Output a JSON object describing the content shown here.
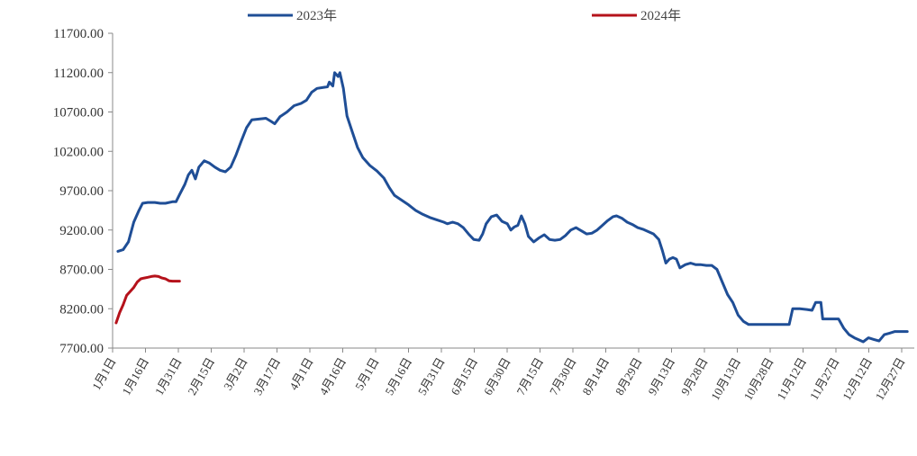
{
  "chart_data": {
    "type": "line",
    "title": "",
    "xlabel": "",
    "ylabel": "",
    "ylim": [
      7700,
      11700
    ],
    "y_ticks": [
      "7700.00",
      "8200.00",
      "8700.00",
      "9200.00",
      "9700.00",
      "10200.00",
      "10700.00",
      "11200.00",
      "11700.00"
    ],
    "x_ticks": [
      "1月1日",
      "1月16日",
      "1月31日",
      "2月15日",
      "3月2日",
      "3月17日",
      "4月1日",
      "4月16日",
      "5月1日",
      "5月16日",
      "5月31日",
      "6月15日",
      "6月30日",
      "7月15日",
      "7月30日",
      "8月14日",
      "8月29日",
      "9月13日",
      "9月28日",
      "10月13日",
      "10月28日",
      "11月12日",
      "11月27日",
      "12月12日",
      "12月27日"
    ],
    "grid": false,
    "legend": "top",
    "series": [
      {
        "name": "2023年",
        "color": "#1f4e96",
        "points": [
          [
            3,
            8930
          ],
          [
            6,
            8950
          ],
          [
            9,
            9050
          ],
          [
            12,
            9300
          ],
          [
            15,
            9450
          ],
          [
            17,
            9540
          ],
          [
            20,
            9550
          ],
          [
            24,
            9550
          ],
          [
            27,
            9540
          ],
          [
            30,
            9540
          ],
          [
            34,
            9560
          ],
          [
            36,
            9560
          ],
          [
            38,
            9650
          ],
          [
            41,
            9780
          ],
          [
            43,
            9900
          ],
          [
            45,
            9960
          ],
          [
            47,
            9850
          ],
          [
            49,
            10000
          ],
          [
            52,
            10080
          ],
          [
            55,
            10050
          ],
          [
            58,
            10000
          ],
          [
            61,
            9960
          ],
          [
            64,
            9940
          ],
          [
            67,
            10000
          ],
          [
            70,
            10150
          ],
          [
            73,
            10330
          ],
          [
            76,
            10500
          ],
          [
            79,
            10600
          ],
          [
            83,
            10610
          ],
          [
            87,
            10620
          ],
          [
            90,
            10580
          ],
          [
            92,
            10550
          ],
          [
            95,
            10640
          ],
          [
            99,
            10700
          ],
          [
            103,
            10780
          ],
          [
            107,
            10810
          ],
          [
            110,
            10850
          ],
          [
            113,
            10950
          ],
          [
            116,
            11000
          ],
          [
            119,
            11010
          ],
          [
            122,
            11020
          ],
          [
            123,
            11080
          ],
          [
            125,
            11030
          ],
          [
            126,
            11200
          ],
          [
            128,
            11150
          ],
          [
            129,
            11200
          ],
          [
            131,
            11000
          ],
          [
            133,
            10650
          ],
          [
            136,
            10450
          ],
          [
            139,
            10250
          ],
          [
            142,
            10120
          ],
          [
            146,
            10020
          ],
          [
            150,
            9950
          ],
          [
            154,
            9860
          ],
          [
            157,
            9740
          ],
          [
            160,
            9640
          ],
          [
            164,
            9580
          ],
          [
            168,
            9520
          ],
          [
            172,
            9450
          ],
          [
            176,
            9400
          ],
          [
            180,
            9360
          ],
          [
            184,
            9330
          ],
          [
            188,
            9300
          ],
          [
            190,
            9280
          ],
          [
            193,
            9300
          ],
          [
            196,
            9280
          ],
          [
            199,
            9230
          ],
          [
            202,
            9150
          ],
          [
            205,
            9080
          ],
          [
            208,
            9070
          ],
          [
            210,
            9150
          ],
          [
            212,
            9280
          ],
          [
            215,
            9370
          ],
          [
            218,
            9390
          ],
          [
            221,
            9310
          ],
          [
            224,
            9280
          ],
          [
            226,
            9200
          ],
          [
            228,
            9240
          ],
          [
            230,
            9260
          ],
          [
            232,
            9380
          ],
          [
            234,
            9280
          ],
          [
            236,
            9120
          ],
          [
            239,
            9050
          ],
          [
            242,
            9100
          ],
          [
            245,
            9140
          ],
          [
            248,
            9080
          ],
          [
            251,
            9070
          ],
          [
            254,
            9080
          ],
          [
            257,
            9130
          ],
          [
            260,
            9200
          ],
          [
            263,
            9230
          ],
          [
            266,
            9190
          ],
          [
            269,
            9150
          ],
          [
            272,
            9160
          ],
          [
            275,
            9200
          ],
          [
            278,
            9260
          ],
          [
            281,
            9320
          ],
          [
            284,
            9370
          ],
          [
            286,
            9380
          ],
          [
            289,
            9350
          ],
          [
            292,
            9300
          ],
          [
            295,
            9270
          ],
          [
            298,
            9230
          ],
          [
            301,
            9210
          ],
          [
            304,
            9180
          ],
          [
            307,
            9150
          ],
          [
            310,
            9080
          ],
          [
            312,
            8940
          ],
          [
            314,
            8780
          ],
          [
            316,
            8830
          ],
          [
            318,
            8850
          ],
          [
            320,
            8830
          ],
          [
            322,
            8720
          ],
          [
            325,
            8760
          ],
          [
            328,
            8780
          ],
          [
            331,
            8760
          ],
          [
            334,
            8760
          ],
          [
            337,
            8750
          ],
          [
            340,
            8750
          ],
          [
            343,
            8700
          ],
          [
            346,
            8540
          ],
          [
            349,
            8380
          ],
          [
            352,
            8280
          ],
          [
            355,
            8120
          ],
          [
            358,
            8040
          ],
          [
            361,
            8000
          ],
          [
            366,
            8000
          ],
          [
            371,
            8000
          ],
          [
            376,
            8000
          ],
          [
            381,
            8000
          ],
          [
            384,
            8000
          ],
          [
            386,
            8200
          ],
          [
            390,
            8200
          ],
          [
            394,
            8190
          ],
          [
            397,
            8180
          ],
          [
            399,
            8280
          ],
          [
            402,
            8280
          ],
          [
            403,
            8070
          ],
          [
            406,
            8070
          ],
          [
            409,
            8070
          ],
          [
            412,
            8070
          ],
          [
            415,
            7950
          ],
          [
            418,
            7870
          ],
          [
            421,
            7830
          ],
          [
            424,
            7800
          ],
          [
            426,
            7780
          ],
          [
            429,
            7830
          ],
          [
            432,
            7810
          ],
          [
            435,
            7790
          ],
          [
            438,
            7870
          ],
          [
            441,
            7890
          ],
          [
            444,
            7910
          ],
          [
            448,
            7910
          ],
          [
            451,
            7910
          ]
        ]
      },
      {
        "name": "2024年",
        "color": "#b5121b",
        "points": [
          [
            2,
            8020
          ],
          [
            4,
            8150
          ],
          [
            6,
            8250
          ],
          [
            8,
            8370
          ],
          [
            10,
            8420
          ],
          [
            12,
            8470
          ],
          [
            14,
            8540
          ],
          [
            16,
            8580
          ],
          [
            18,
            8590
          ],
          [
            20,
            8600
          ],
          [
            22,
            8610
          ],
          [
            24,
            8615
          ],
          [
            26,
            8610
          ],
          [
            28,
            8590
          ],
          [
            30,
            8580
          ],
          [
            32,
            8555
          ],
          [
            34,
            8550
          ],
          [
            36,
            8550
          ],
          [
            38,
            8550
          ]
        ]
      }
    ]
  }
}
